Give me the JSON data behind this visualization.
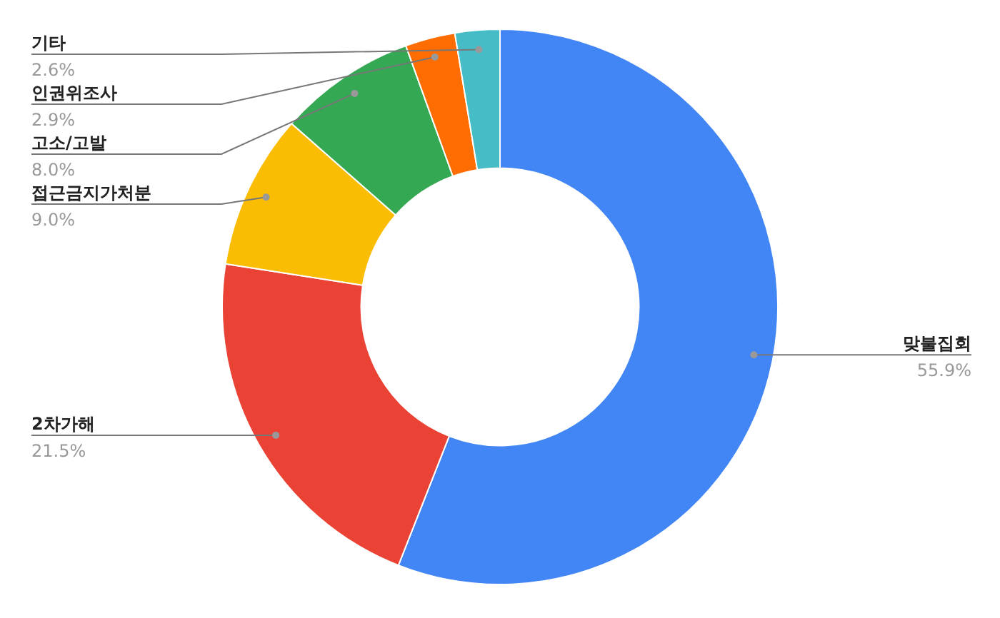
{
  "chart_data": {
    "type": "donut",
    "categories": [
      "맞불집회",
      "2차가해",
      "접근금지가처분",
      "고소/고발",
      "인권위조사",
      "기타"
    ],
    "values": [
      55.9,
      21.5,
      9.0,
      8.0,
      2.9,
      2.6
    ],
    "colors": [
      "#4285f4",
      "#ea4335",
      "#fbbc04",
      "#34a853",
      "#ff6d01",
      "#46bdc6"
    ],
    "value_labels": [
      "55.9%",
      "21.5%",
      "9.0%",
      "8.0%",
      "2.9%",
      "2.6%"
    ],
    "legend": false
  }
}
